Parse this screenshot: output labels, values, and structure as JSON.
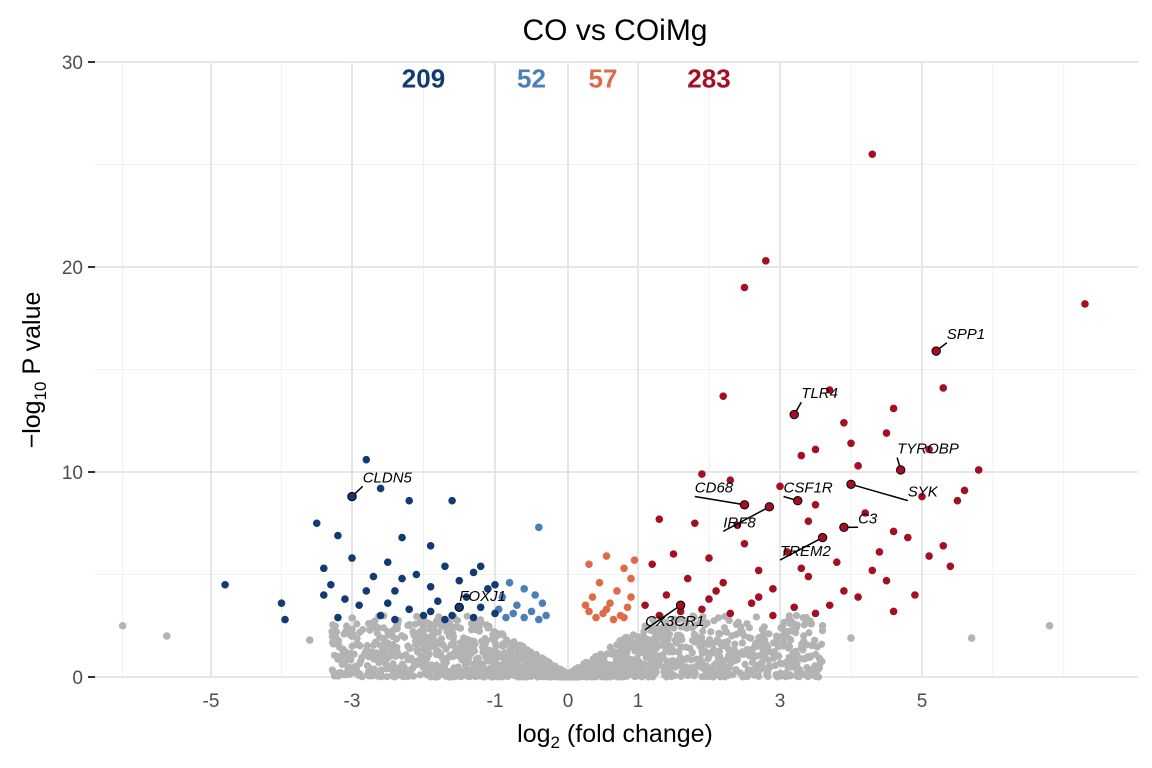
{
  "chart_data": {
    "type": "scatter",
    "title": "CO vs COiMg",
    "xlabel": {
      "prefix": "log",
      "sub": "2",
      "suffix": " (fold change)"
    },
    "ylabel": {
      "prefix": "−log",
      "sub": "10",
      "suffix": " P value"
    },
    "xlim": [
      -6.2,
      8.5
    ],
    "ylim": [
      0,
      30
    ],
    "x_ticks": [
      {
        "value": -5,
        "label": "-5"
      },
      {
        "value": -3,
        "label": "-3"
      },
      {
        "value": -1,
        "label": "-1"
      },
      {
        "value": 0,
        "label": "0"
      },
      {
        "value": 1,
        "label": "1"
      },
      {
        "value": 3,
        "label": "3"
      },
      {
        "value": 5,
        "label": "5"
      }
    ],
    "y_ticks": [
      {
        "value": 0,
        "label": "0"
      },
      {
        "value": 10,
        "label": "10"
      },
      {
        "value": 20,
        "label": "20"
      },
      {
        "value": 30,
        "label": "30"
      }
    ],
    "x_minor_grid": [
      -6,
      -4,
      -2,
      2,
      4,
      6,
      7
    ],
    "y_minor_grid": [
      5,
      15,
      25
    ],
    "grid": true,
    "legend": "none",
    "counts": [
      {
        "label": "209",
        "x": -2.0,
        "color": "#123a74"
      },
      {
        "label": "52",
        "x": -0.5,
        "color": "#4a7fb8"
      },
      {
        "label": "57",
        "x": 0.5,
        "color": "#e0694a"
      },
      {
        "label": "283",
        "x": 2.0,
        "color": "#a50f24"
      }
    ],
    "count_y": 29.2,
    "colors": {
      "ns": "#b3b3b3",
      "down_strong": "#123a74",
      "down": "#4a7fb8",
      "up": "#e0694a",
      "up_strong": "#a50f24"
    },
    "points": [
      {
        "x": 4.3,
        "y": 25.5
      },
      {
        "x": 2.8,
        "y": 20.3
      },
      {
        "x": 2.5,
        "y": 19.0
      },
      {
        "x": 7.3,
        "y": 18.2
      },
      {
        "x": 5.3,
        "y": 14.1
      },
      {
        "x": 2.2,
        "y": 13.7
      },
      {
        "x": 3.7,
        "y": 14.0
      },
      {
        "x": 4.6,
        "y": 13.1
      },
      {
        "x": 3.9,
        "y": 12.4
      },
      {
        "x": 4.5,
        "y": 11.9
      },
      {
        "x": 5.1,
        "y": 11.1
      },
      {
        "x": 4.0,
        "y": 11.4
      },
      {
        "x": 3.5,
        "y": 11.1
      },
      {
        "x": 3.3,
        "y": 10.8
      },
      {
        "x": 4.1,
        "y": 10.3
      },
      {
        "x": 5.8,
        "y": 10.1
      },
      {
        "x": 1.9,
        "y": 9.9
      },
      {
        "x": 2.3,
        "y": 9.6
      },
      {
        "x": 5.6,
        "y": 9.1
      },
      {
        "x": 5.5,
        "y": 8.6
      },
      {
        "x": 3.0,
        "y": 9.3
      },
      {
        "x": 3.5,
        "y": 8.4
      },
      {
        "x": 4.2,
        "y": 8.0
      },
      {
        "x": 5.0,
        "y": 8.8
      },
      {
        "x": 1.3,
        "y": 7.7
      },
      {
        "x": 1.8,
        "y": 7.5
      },
      {
        "x": 2.4,
        "y": 7.4
      },
      {
        "x": 3.4,
        "y": 7.6
      },
      {
        "x": 4.6,
        "y": 7.1
      },
      {
        "x": 5.3,
        "y": 6.4
      },
      {
        "x": 5.1,
        "y": 5.9
      },
      {
        "x": 5.4,
        "y": 5.4
      },
      {
        "x": 2.5,
        "y": 6.5
      },
      {
        "x": 1.5,
        "y": 6.0
      },
      {
        "x": 2.0,
        "y": 5.8
      },
      {
        "x": 3.1,
        "y": 6.1
      },
      {
        "x": 3.8,
        "y": 5.6
      },
      {
        "x": 4.4,
        "y": 6.1
      },
      {
        "x": 2.7,
        "y": 5.2
      },
      {
        "x": 1.2,
        "y": 5.5
      },
      {
        "x": 1.7,
        "y": 4.8
      },
      {
        "x": 2.2,
        "y": 4.6
      },
      {
        "x": 2.9,
        "y": 4.3
      },
      {
        "x": 3.4,
        "y": 4.9
      },
      {
        "x": 3.9,
        "y": 4.2
      },
      {
        "x": 4.5,
        "y": 4.7
      },
      {
        "x": 4.9,
        "y": 4.0
      },
      {
        "x": 1.4,
        "y": 4.0
      },
      {
        "x": 2.0,
        "y": 3.8
      },
      {
        "x": 2.6,
        "y": 3.6
      },
      {
        "x": 3.2,
        "y": 3.4
      },
      {
        "x": 3.7,
        "y": 3.5
      },
      {
        "x": 4.1,
        "y": 3.9
      },
      {
        "x": 4.6,
        "y": 3.2
      },
      {
        "x": 1.1,
        "y": 3.5
      },
      {
        "x": 1.6,
        "y": 3.2
      },
      {
        "x": 2.3,
        "y": 3.1
      },
      {
        "x": 2.9,
        "y": 3.0
      },
      {
        "x": 3.5,
        "y": 3.1
      },
      {
        "x": 1.9,
        "y": 3.3
      },
      {
        "x": 1.3,
        "y": 3.0
      },
      {
        "x": 2.7,
        "y": 3.9
      },
      {
        "x": 4.3,
        "y": 5.2
      },
      {
        "x": 4.8,
        "y": 6.8
      },
      {
        "x": 3.3,
        "y": 5.3
      },
      {
        "x": 2.1,
        "y": 4.2
      },
      {
        "x": 0.3,
        "y": 5.5
      },
      {
        "x": 0.55,
        "y": 5.9
      },
      {
        "x": 0.8,
        "y": 5.3
      },
      {
        "x": 0.95,
        "y": 5.7
      },
      {
        "x": 0.45,
        "y": 4.6
      },
      {
        "x": 0.7,
        "y": 4.2
      },
      {
        "x": 0.9,
        "y": 4.8
      },
      {
        "x": 0.35,
        "y": 3.9
      },
      {
        "x": 0.6,
        "y": 3.6
      },
      {
        "x": 0.85,
        "y": 3.4
      },
      {
        "x": 0.3,
        "y": 3.2
      },
      {
        "x": 0.5,
        "y": 3.1
      },
      {
        "x": 0.75,
        "y": 3.0
      },
      {
        "x": 0.4,
        "y": 2.9
      },
      {
        "x": 0.65,
        "y": 2.8
      },
      {
        "x": 0.25,
        "y": 3.5
      },
      {
        "x": 0.55,
        "y": 3.3
      },
      {
        "x": 0.9,
        "y": 3.9
      },
      {
        "x": 0.8,
        "y": 2.9
      },
      {
        "x": -0.4,
        "y": 7.3
      },
      {
        "x": -0.6,
        "y": 4.3
      },
      {
        "x": -0.45,
        "y": 4.0
      },
      {
        "x": -0.8,
        "y": 4.6
      },
      {
        "x": -0.35,
        "y": 3.6
      },
      {
        "x": -0.7,
        "y": 3.5
      },
      {
        "x": -0.9,
        "y": 3.9
      },
      {
        "x": -0.5,
        "y": 3.2
      },
      {
        "x": -0.75,
        "y": 3.1
      },
      {
        "x": -0.3,
        "y": 3.0
      },
      {
        "x": -0.95,
        "y": 3.3
      },
      {
        "x": -0.6,
        "y": 2.9
      },
      {
        "x": -0.4,
        "y": 2.8
      },
      {
        "x": -0.85,
        "y": 2.9
      },
      {
        "x": -2.8,
        "y": 10.6
      },
      {
        "x": -1.6,
        "y": 8.6
      },
      {
        "x": -2.2,
        "y": 8.6
      },
      {
        "x": -2.6,
        "y": 9.2
      },
      {
        "x": -3.5,
        "y": 7.5
      },
      {
        "x": -3.2,
        "y": 6.9
      },
      {
        "x": -2.3,
        "y": 6.8
      },
      {
        "x": -1.9,
        "y": 6.4
      },
      {
        "x": -4.8,
        "y": 4.5
      },
      {
        "x": -4.0,
        "y": 3.6
      },
      {
        "x": -3.95,
        "y": 2.8
      },
      {
        "x": -3.4,
        "y": 5.3
      },
      {
        "x": -3.3,
        "y": 4.5
      },
      {
        "x": -3.0,
        "y": 5.8
      },
      {
        "x": -2.9,
        "y": 3.5
      },
      {
        "x": -2.7,
        "y": 4.9
      },
      {
        "x": -2.5,
        "y": 5.6
      },
      {
        "x": -2.4,
        "y": 4.2
      },
      {
        "x": -2.2,
        "y": 3.3
      },
      {
        "x": -2.1,
        "y": 5.0
      },
      {
        "x": -1.9,
        "y": 4.4
      },
      {
        "x": -1.8,
        "y": 3.7
      },
      {
        "x": -1.7,
        "y": 5.4
      },
      {
        "x": -1.6,
        "y": 3.0
      },
      {
        "x": -1.5,
        "y": 4.7
      },
      {
        "x": -1.4,
        "y": 3.9
      },
      {
        "x": -1.3,
        "y": 5.1
      },
      {
        "x": -1.2,
        "y": 3.4
      },
      {
        "x": -1.1,
        "y": 4.3
      },
      {
        "x": -1.0,
        "y": 3.1
      },
      {
        "x": -2.6,
        "y": 3.0
      },
      {
        "x": -3.1,
        "y": 3.8
      },
      {
        "x": -2.0,
        "y": 3.0
      },
      {
        "x": -1.5,
        "y": 3.4
      },
      {
        "x": -2.3,
        "y": 4.8
      },
      {
        "x": -3.4,
        "y": 4.0
      },
      {
        "x": -2.8,
        "y": 4.2
      },
      {
        "x": -1.2,
        "y": 5.4
      },
      {
        "x": -1.0,
        "y": 4.5
      },
      {
        "x": -1.9,
        "y": 3.2
      },
      {
        "x": -2.5,
        "y": 3.6
      },
      {
        "x": -1.3,
        "y": 2.9
      },
      {
        "x": -3.2,
        "y": 2.9
      },
      {
        "x": -2.4,
        "y": 2.8
      },
      {
        "x": -1.7,
        "y": 2.8
      },
      {
        "x": -6.0,
        "y": 2.5
      },
      {
        "x": -5.5,
        "y": 2.0
      },
      {
        "x": 6.8,
        "y": 2.5
      },
      {
        "x": 5.7,
        "y": 1.9
      },
      {
        "x": 3.6,
        "y": 2.5
      },
      {
        "x": 3.1,
        "y": 2.2
      },
      {
        "x": 4.0,
        "y": 1.9
      },
      {
        "x": 2.8,
        "y": 1.6
      },
      {
        "x": -3.6,
        "y": 1.8
      },
      {
        "x": -3.2,
        "y": 1.6
      },
      {
        "x": 2.5,
        "y": 1.2
      }
    ],
    "labeled_genes": [
      {
        "name": "SPP1",
        "x": 5.2,
        "y": 15.9,
        "tx": 5.35,
        "ty": 16.5,
        "color": "#a50f24"
      },
      {
        "name": "TLR4",
        "x": 3.2,
        "y": 12.8,
        "tx": 3.3,
        "ty": 13.6,
        "color": "#a50f24"
      },
      {
        "name": "TYROBP",
        "x": 4.7,
        "y": 10.1,
        "tx": 4.65,
        "ty": 10.9,
        "color": "#a50f24"
      },
      {
        "name": "CD68",
        "x": 2.5,
        "y": 8.4,
        "tx": 1.8,
        "ty": 9.0,
        "color": "#a50f24"
      },
      {
        "name": "CSF1R",
        "x": 3.25,
        "y": 8.6,
        "tx": 3.05,
        "ty": 9.0,
        "color": "#a50f24"
      },
      {
        "name": "SYK",
        "x": 4.0,
        "y": 9.4,
        "tx": 4.8,
        "ty": 8.8,
        "color": "#a50f24"
      },
      {
        "name": "IRF8",
        "x": 2.85,
        "y": 8.3,
        "tx": 2.2,
        "ty": 7.3,
        "color": "#a50f24"
      },
      {
        "name": "C3",
        "x": 3.9,
        "y": 7.3,
        "tx": 4.1,
        "ty": 7.5,
        "color": "#a50f24"
      },
      {
        "name": "TREM2",
        "x": 3.6,
        "y": 6.8,
        "tx": 3.0,
        "ty": 5.9,
        "color": "#a50f24"
      },
      {
        "name": "CLDN5",
        "x": -3.0,
        "y": 8.8,
        "tx": -2.85,
        "ty": 9.5,
        "color": "#123a74"
      },
      {
        "name": "FOXJ1",
        "x": -1.5,
        "y": 3.4,
        "tx": -1.5,
        "ty": 3.7,
        "color": "#123a74"
      },
      {
        "name": "CX3CR1",
        "x": 1.6,
        "y": 3.5,
        "tx": 1.1,
        "ty": 2.5,
        "color": "#a50f24"
      }
    ]
  }
}
